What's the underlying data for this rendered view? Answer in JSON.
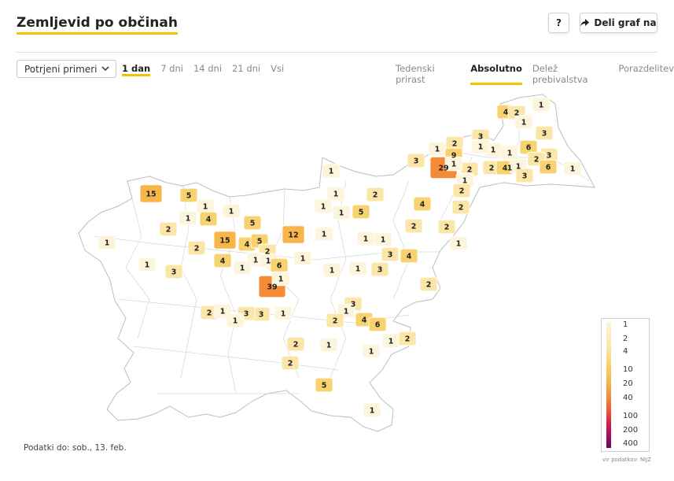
{
  "header": {
    "title": "Zemljevid po občinah",
    "help_label": "?",
    "share_label": "Deli graf na",
    "share_icon": "share-arrow-icon"
  },
  "controls": {
    "dataset_select": "Potrjeni primeri",
    "period_tabs": [
      "1 dan",
      "7 dni",
      "14 dni",
      "21 dni",
      "Vsi"
    ],
    "period_active": "1 dan",
    "view_tabs": [
      "Tedenski prirast",
      "Absolutno",
      "Delež prebivalstva",
      "Porazdelitev"
    ],
    "view_active": "Absolutno"
  },
  "legend": {
    "labels": [
      "1",
      "2",
      "4",
      "10",
      "20",
      "40",
      "100",
      "200",
      "400"
    ],
    "colors": [
      "#fdf4dc",
      "#fbe6a8",
      "#f8d26e",
      "#f7b54a",
      "#f58b36",
      "#ef5a34",
      "#d8204a",
      "#a4125c",
      "#5e0a66"
    ],
    "source": "vir podatkov: NIJZ"
  },
  "footer": {
    "updated": "Podatki do: sob., 13. feb."
  },
  "map_values": [
    "1",
    "4",
    "2",
    "1",
    "3",
    "1",
    "2",
    "3",
    "1",
    "6",
    "1",
    "1",
    "9",
    "1",
    "3",
    "2",
    "29",
    "2",
    "1",
    "3",
    "2",
    "4",
    "1",
    "3",
    "6",
    "1",
    "1",
    "1",
    "2",
    "15",
    "5",
    "1",
    "2",
    "4",
    "2",
    "1",
    "1",
    "1",
    "5",
    "1",
    "4",
    "2",
    "1",
    "5",
    "1",
    "2",
    "15",
    "4",
    "5",
    "12",
    "1",
    "2",
    "2",
    "1",
    "4",
    "1",
    "2",
    "1",
    "1",
    "1",
    "6",
    "1",
    "1",
    "3",
    "4",
    "1",
    "39",
    "1",
    "1",
    "3",
    "3",
    "1",
    "2",
    "3",
    "3",
    "2",
    "1",
    "1",
    "3",
    "1",
    "1",
    "4",
    "2",
    "2",
    "6",
    "1",
    "1",
    "2",
    "1",
    "2",
    "5",
    "1"
  ]
}
